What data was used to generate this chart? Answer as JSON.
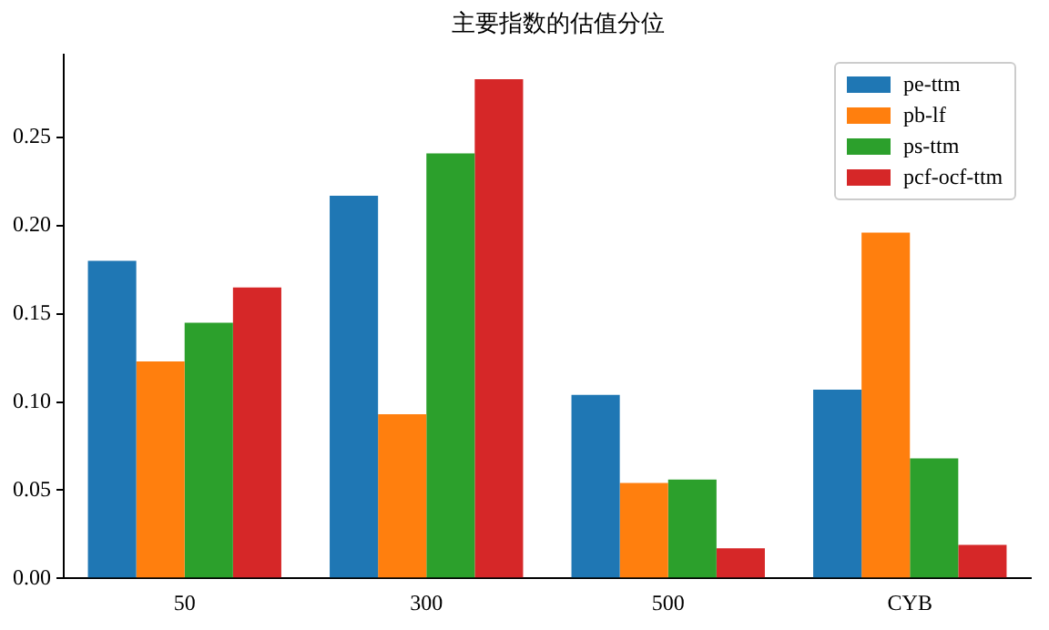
{
  "chart_data": {
    "type": "bar",
    "title": "主要指数的估值分位",
    "categories": [
      "50",
      "300",
      "500",
      "CYB"
    ],
    "series": [
      {
        "name": "pe-ttm",
        "color": "#1f77b4",
        "values": [
          0.18,
          0.217,
          0.104,
          0.107
        ]
      },
      {
        "name": "pb-lf",
        "color": "#ff7f0e",
        "values": [
          0.123,
          0.093,
          0.054,
          0.196
        ]
      },
      {
        "name": "ps-ttm",
        "color": "#2ca02c",
        "values": [
          0.145,
          0.241,
          0.056,
          0.068
        ]
      },
      {
        "name": "pcf-ocf-ttm",
        "color": "#d62728",
        "values": [
          0.165,
          0.283,
          0.017,
          0.019
        ]
      }
    ],
    "ylim": [
      0,
      0.297
    ],
    "yticks": [
      {
        "value": 0,
        "label": "0.00"
      },
      {
        "value": 0.05,
        "label": "0.05"
      },
      {
        "value": 0.1,
        "label": "0.10"
      },
      {
        "value": 0.15,
        "label": "0.15"
      },
      {
        "value": 0.2,
        "label": "0.20"
      },
      {
        "value": 0.25,
        "label": "0.25"
      }
    ],
    "grid": false,
    "legend": "top right"
  }
}
